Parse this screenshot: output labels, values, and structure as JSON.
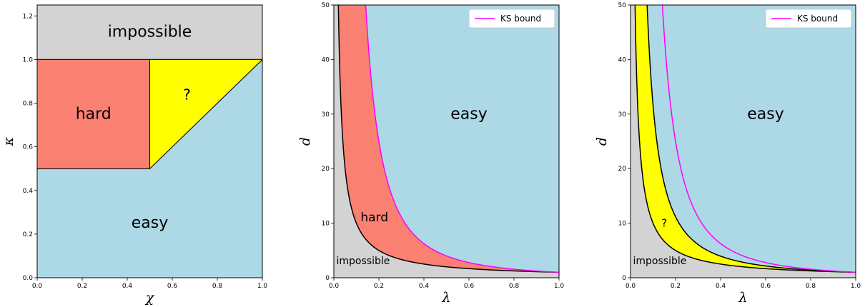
{
  "colors": {
    "impossible": "#d3d3d3",
    "hard": "#fa8072",
    "unknown": "#ffff00",
    "easy": "#add8e6",
    "ks_bound": "#ff00ff",
    "curve": "#000000"
  },
  "chart_data": [
    {
      "type": "area",
      "xlabel": "χ",
      "ylabel": "κ",
      "xlim": [
        0,
        1
      ],
      "ylim": [
        0,
        1.25
      ],
      "xticks": [
        "0.0",
        "0.2",
        "0.4",
        "0.6",
        "0.8",
        "1.0"
      ],
      "xtick_values": [
        0,
        0.2,
        0.4,
        0.6,
        0.8,
        1.0
      ],
      "yticks": [
        "0.0",
        "0.2",
        "0.4",
        "0.6",
        "0.8",
        "1.0",
        "1.2"
      ],
      "ytick_values": [
        0,
        0.2,
        0.4,
        0.6,
        0.8,
        1.0,
        1.2
      ],
      "regions": [
        {
          "label": "impossible",
          "color": "impossible",
          "polygon": [
            [
              0,
              1.0
            ],
            [
              1,
              1.0
            ],
            [
              1,
              1.25
            ],
            [
              0,
              1.25
            ]
          ],
          "label_at": [
            0.5,
            1.125
          ],
          "font_size": 22
        },
        {
          "label": "easy",
          "color": "easy",
          "polygon": [
            [
              0,
              0
            ],
            [
              1,
              0
            ],
            [
              1,
              1.0
            ],
            [
              0.5,
              0.5
            ],
            [
              0,
              0.5
            ]
          ],
          "label_at": [
            0.5,
            0.25
          ],
          "font_size": 22
        },
        {
          "label": "hard",
          "color": "hard",
          "polygon": [
            [
              0,
              0.5
            ],
            [
              0.5,
              0.5
            ],
            [
              0.5,
              1.0
            ],
            [
              0,
              1.0
            ]
          ],
          "label_at": [
            0.25,
            0.75
          ],
          "font_size": 22
        },
        {
          "label": "?",
          "color": "unknown",
          "polygon": [
            [
              0.5,
              0.5
            ],
            [
              1.0,
              1.0
            ],
            [
              0.5,
              1.0
            ]
          ],
          "label_at": [
            0.665,
            0.84
          ],
          "font_size": 20
        }
      ]
    },
    {
      "type": "area",
      "xlabel": "λ",
      "ylabel": "d",
      "xlim": [
        0,
        1
      ],
      "ylim": [
        0,
        50
      ],
      "xticks": [
        "0.0",
        "0.2",
        "0.4",
        "0.6",
        "0.8",
        "1.0"
      ],
      "xtick_values": [
        0,
        0.2,
        0.4,
        0.6,
        0.8,
        1.0
      ],
      "yticks": [
        "0",
        "10",
        "20",
        "30",
        "40",
        "50"
      ],
      "ytick_values": [
        0,
        10,
        20,
        30,
        40,
        50
      ],
      "lower_curve": "d = 1/λ",
      "upper_curve": "d = 1/λ²",
      "middle_region": {
        "label": "hard",
        "color": "hard"
      },
      "region_labels": [
        {
          "label": "easy",
          "at": [
            0.6,
            30
          ],
          "font_size": 22
        },
        {
          "label": "hard",
          "at": [
            0.18,
            11
          ],
          "font_size": 17
        },
        {
          "label": "impossible",
          "at": [
            0.13,
            3
          ],
          "font_size": 14
        }
      ],
      "legend": {
        "entries": [
          "KS bound"
        ],
        "position": "top-right"
      },
      "ks_bound_curve": "d = 1/λ²"
    },
    {
      "type": "area",
      "xlabel": "λ",
      "ylabel": "d",
      "xlim": [
        0,
        1
      ],
      "ylim": [
        0,
        50
      ],
      "xticks": [
        "0.0",
        "0.2",
        "0.4",
        "0.6",
        "0.8",
        "1.0"
      ],
      "xtick_values": [
        0,
        0.2,
        0.4,
        0.6,
        0.8,
        1.0
      ],
      "yticks": [
        "0",
        "10",
        "20",
        "30",
        "40",
        "50"
      ],
      "ytick_values": [
        0,
        10,
        20,
        30,
        40,
        50
      ],
      "lower_curve": "d = 1/λ",
      "upper_curve": "d = 1/λ^1.5",
      "middle_region": {
        "label": "?",
        "color": "unknown"
      },
      "region_labels": [
        {
          "label": "easy",
          "at": [
            0.6,
            30
          ],
          "font_size": 22
        },
        {
          "label": "?",
          "at": [
            0.15,
            10
          ],
          "font_size": 15
        },
        {
          "label": "impossible",
          "at": [
            0.13,
            3
          ],
          "font_size": 14
        }
      ],
      "legend": {
        "entries": [
          "KS bound"
        ],
        "position": "top-right"
      },
      "ks_bound_curve": "d = 1/λ²"
    }
  ]
}
